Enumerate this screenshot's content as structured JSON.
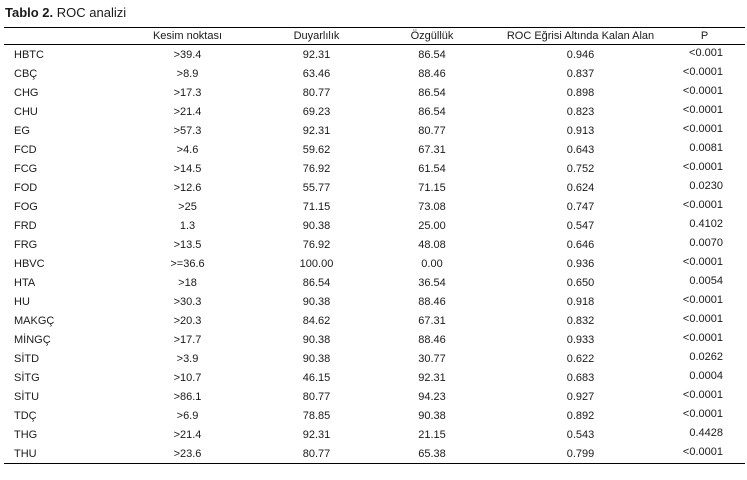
{
  "caption": {
    "label": "Tablo 2.",
    "title": "ROC analizi"
  },
  "headers": [
    "",
    "Kesim noktası",
    "Duyarlılık",
    "Özgüllük",
    "ROC Eğrisi Altında Kalan Alan",
    "P"
  ],
  "rows": [
    [
      "HBTC",
      ">39.4",
      "92.31",
      "86.54",
      "0.946",
      "<0.001"
    ],
    [
      "CBÇ",
      ">8.9",
      "63.46",
      "88.46",
      "0.837",
      "<0.0001"
    ],
    [
      "CHG",
      ">17.3",
      "80.77",
      "86.54",
      "0.898",
      "<0.0001"
    ],
    [
      "CHU",
      ">21.4",
      "69.23",
      "86.54",
      "0.823",
      "<0.0001"
    ],
    [
      "EG",
      ">57.3",
      "92.31",
      "80.77",
      "0.913",
      "<0.0001"
    ],
    [
      "FCD",
      ">4.6",
      "59.62",
      "67.31",
      "0.643",
      "0.0081"
    ],
    [
      "FCG",
      ">14.5",
      "76.92",
      "61.54",
      "0.752",
      "<0.0001"
    ],
    [
      "FOD",
      ">12.6",
      "55.77",
      "71.15",
      "0.624",
      "0.0230"
    ],
    [
      "FOG",
      ">25",
      "71.15",
      "73.08",
      "0.747",
      "<0.0001"
    ],
    [
      "FRD",
      "1.3",
      "90.38",
      "25.00",
      "0.547",
      "0.4102"
    ],
    [
      "FRG",
      ">13.5",
      "76.92",
      "48.08",
      "0.646",
      "0.0070"
    ],
    [
      "HBVC",
      ">=36.6",
      "100.00",
      "0.00",
      "0.936",
      "<0.0001"
    ],
    [
      "HTA",
      ">18",
      "86.54",
      "36.54",
      "0.650",
      "0.0054"
    ],
    [
      "HU",
      ">30.3",
      "90.38",
      "88.46",
      "0.918",
      "<0.0001"
    ],
    [
      "MAKGÇ",
      ">20.3",
      "84.62",
      "67.31",
      "0.832",
      "<0.0001"
    ],
    [
      "MİNGÇ",
      ">17.7",
      "90.38",
      "88.46",
      "0.933",
      "<0.0001"
    ],
    [
      "SİTD",
      ">3.9",
      "90.38",
      "30.77",
      "0.622",
      "0.0262"
    ],
    [
      "SİTG",
      ">10.7",
      "46.15",
      "92.31",
      "0.683",
      "0.0004"
    ],
    [
      "SİTU",
      ">86.1",
      "80.77",
      "94.23",
      "0.927",
      "<0.0001"
    ],
    [
      "TDÇ",
      ">6.9",
      "78.85",
      "90.38",
      "0.892",
      "<0.0001"
    ],
    [
      "THG",
      ">21.4",
      "92.31",
      "21.15",
      "0.543",
      "0.4428"
    ],
    [
      "THU",
      ">23.6",
      "80.77",
      "65.38",
      "0.799",
      "<0.0001"
    ]
  ]
}
